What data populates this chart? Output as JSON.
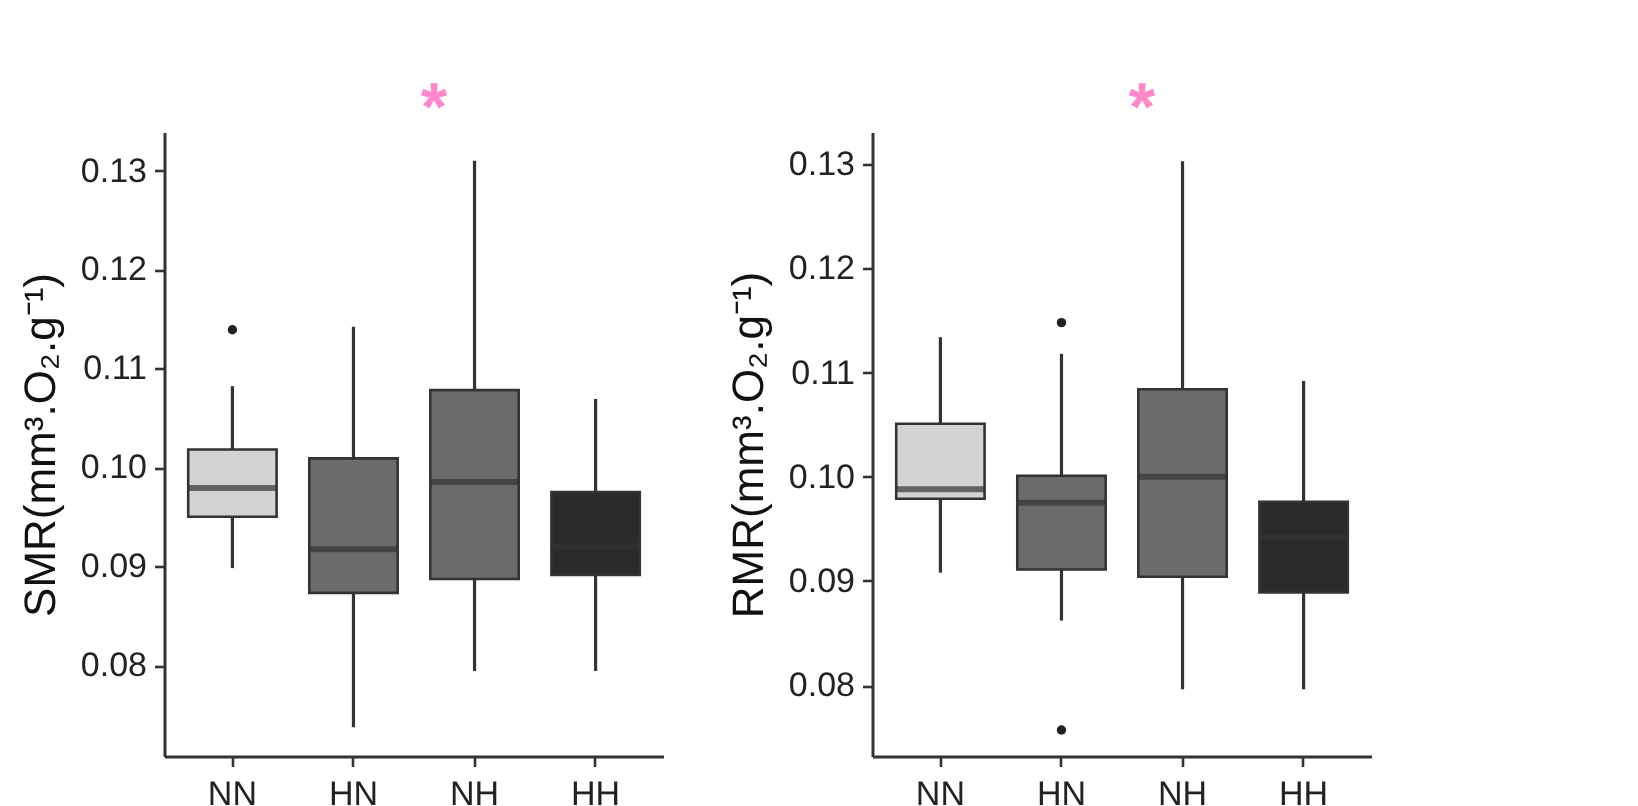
{
  "chart_data": [
    {
      "type": "box",
      "ylabel": "SMR(mm³.O₂.g⁻¹)",
      "categories": [
        "NN",
        "HN",
        "NH",
        "HH"
      ],
      "colors": [
        "#d3d3d3",
        "#6b6b6b",
        "#6b6b6b",
        "#2a2a2a"
      ],
      "boxes": [
        {
          "low": 0.0898,
          "q1": 0.095,
          "median": 0.0979,
          "q3": 0.1018,
          "high": 0.1082,
          "outliers": [
            0.1139
          ]
        },
        {
          "low": 0.0737,
          "q1": 0.0873,
          "median": 0.0917,
          "q3": 0.1009,
          "high": 0.1142
        },
        {
          "low": 0.0794,
          "q1": 0.0887,
          "median": 0.0985,
          "q3": 0.1078,
          "high": 0.131
        },
        {
          "low": 0.0794,
          "q1": 0.0891,
          "median": 0.092,
          "q3": 0.0975,
          "high": 0.1069
        }
      ],
      "ylim": [
        0.0708,
        0.1339
      ],
      "yticks": [
        0.08,
        0.09,
        {
          "value": 0.1,
          "label": "0.10"
        },
        0.11,
        0.12,
        0.13
      ],
      "grid": false,
      "annotations": [
        "*"
      ]
    },
    {
      "type": "box",
      "ylabel": "RMR(mm³.O₂.g⁻¹)",
      "categories": [
        "NN",
        "HN",
        "NH",
        "HH"
      ],
      "colors": [
        "#d3d3d3",
        "#6b6b6b",
        "#6b6b6b",
        "#2a2a2a"
      ],
      "boxes": [
        {
          "low": 0.0908,
          "q1": 0.0979,
          "median": 0.0988,
          "q3": 0.1051,
          "high": 0.1134
        },
        {
          "low": 0.0862,
          "q1": 0.0911,
          "median": 0.0975,
          "q3": 0.1001,
          "high": 0.1118,
          "outliers": [
            0.1148,
            0.0757
          ]
        },
        {
          "low": 0.0796,
          "q1": 0.0904,
          "median": 0.1,
          "q3": 0.1084,
          "high": 0.1303
        },
        {
          "low": 0.0796,
          "q1": 0.0889,
          "median": 0.0942,
          "q3": 0.0976,
          "high": 0.1092
        }
      ],
      "ylim": [
        0.0732,
        0.1331
      ],
      "yticks": [
        0.08,
        0.09,
        {
          "value": 0.1,
          "label": "0.10"
        },
        0.11,
        0.12,
        0.13
      ],
      "grid": false,
      "annotations": [
        "*"
      ]
    }
  ]
}
